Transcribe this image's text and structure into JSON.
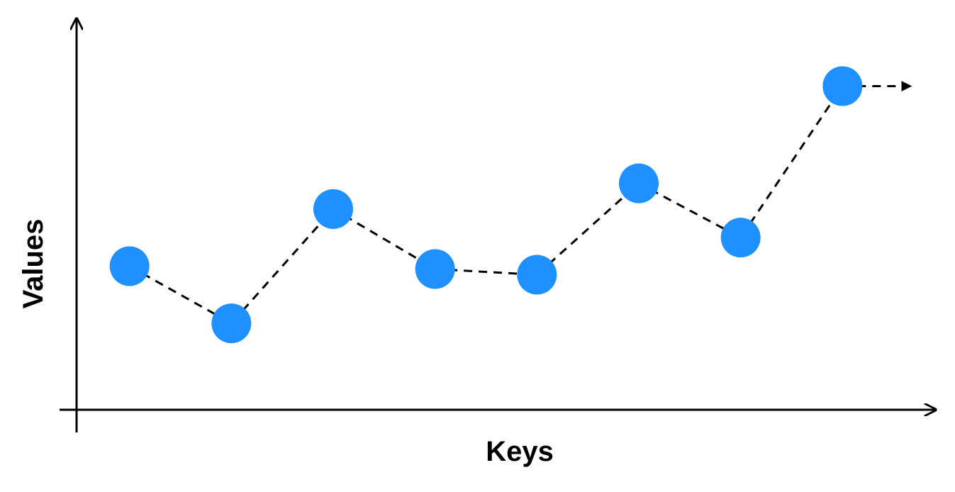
{
  "chart_data": {
    "type": "line",
    "title": "",
    "xlabel": "Keys",
    "ylabel": "Values",
    "x": [
      1,
      2,
      3,
      4,
      5,
      6,
      7,
      8
    ],
    "values": [
      40,
      20,
      60,
      39,
      37,
      69,
      50,
      103
    ],
    "xlim": [
      0,
      9
    ],
    "ylim": [
      -10,
      120
    ],
    "line_style": "dashed",
    "trend_arrow": true,
    "grid": false,
    "legend": "none"
  },
  "colors": {
    "point": "#1E90FF",
    "line": "#000000",
    "axis": "#000000",
    "background": "#FFFFFF"
  }
}
